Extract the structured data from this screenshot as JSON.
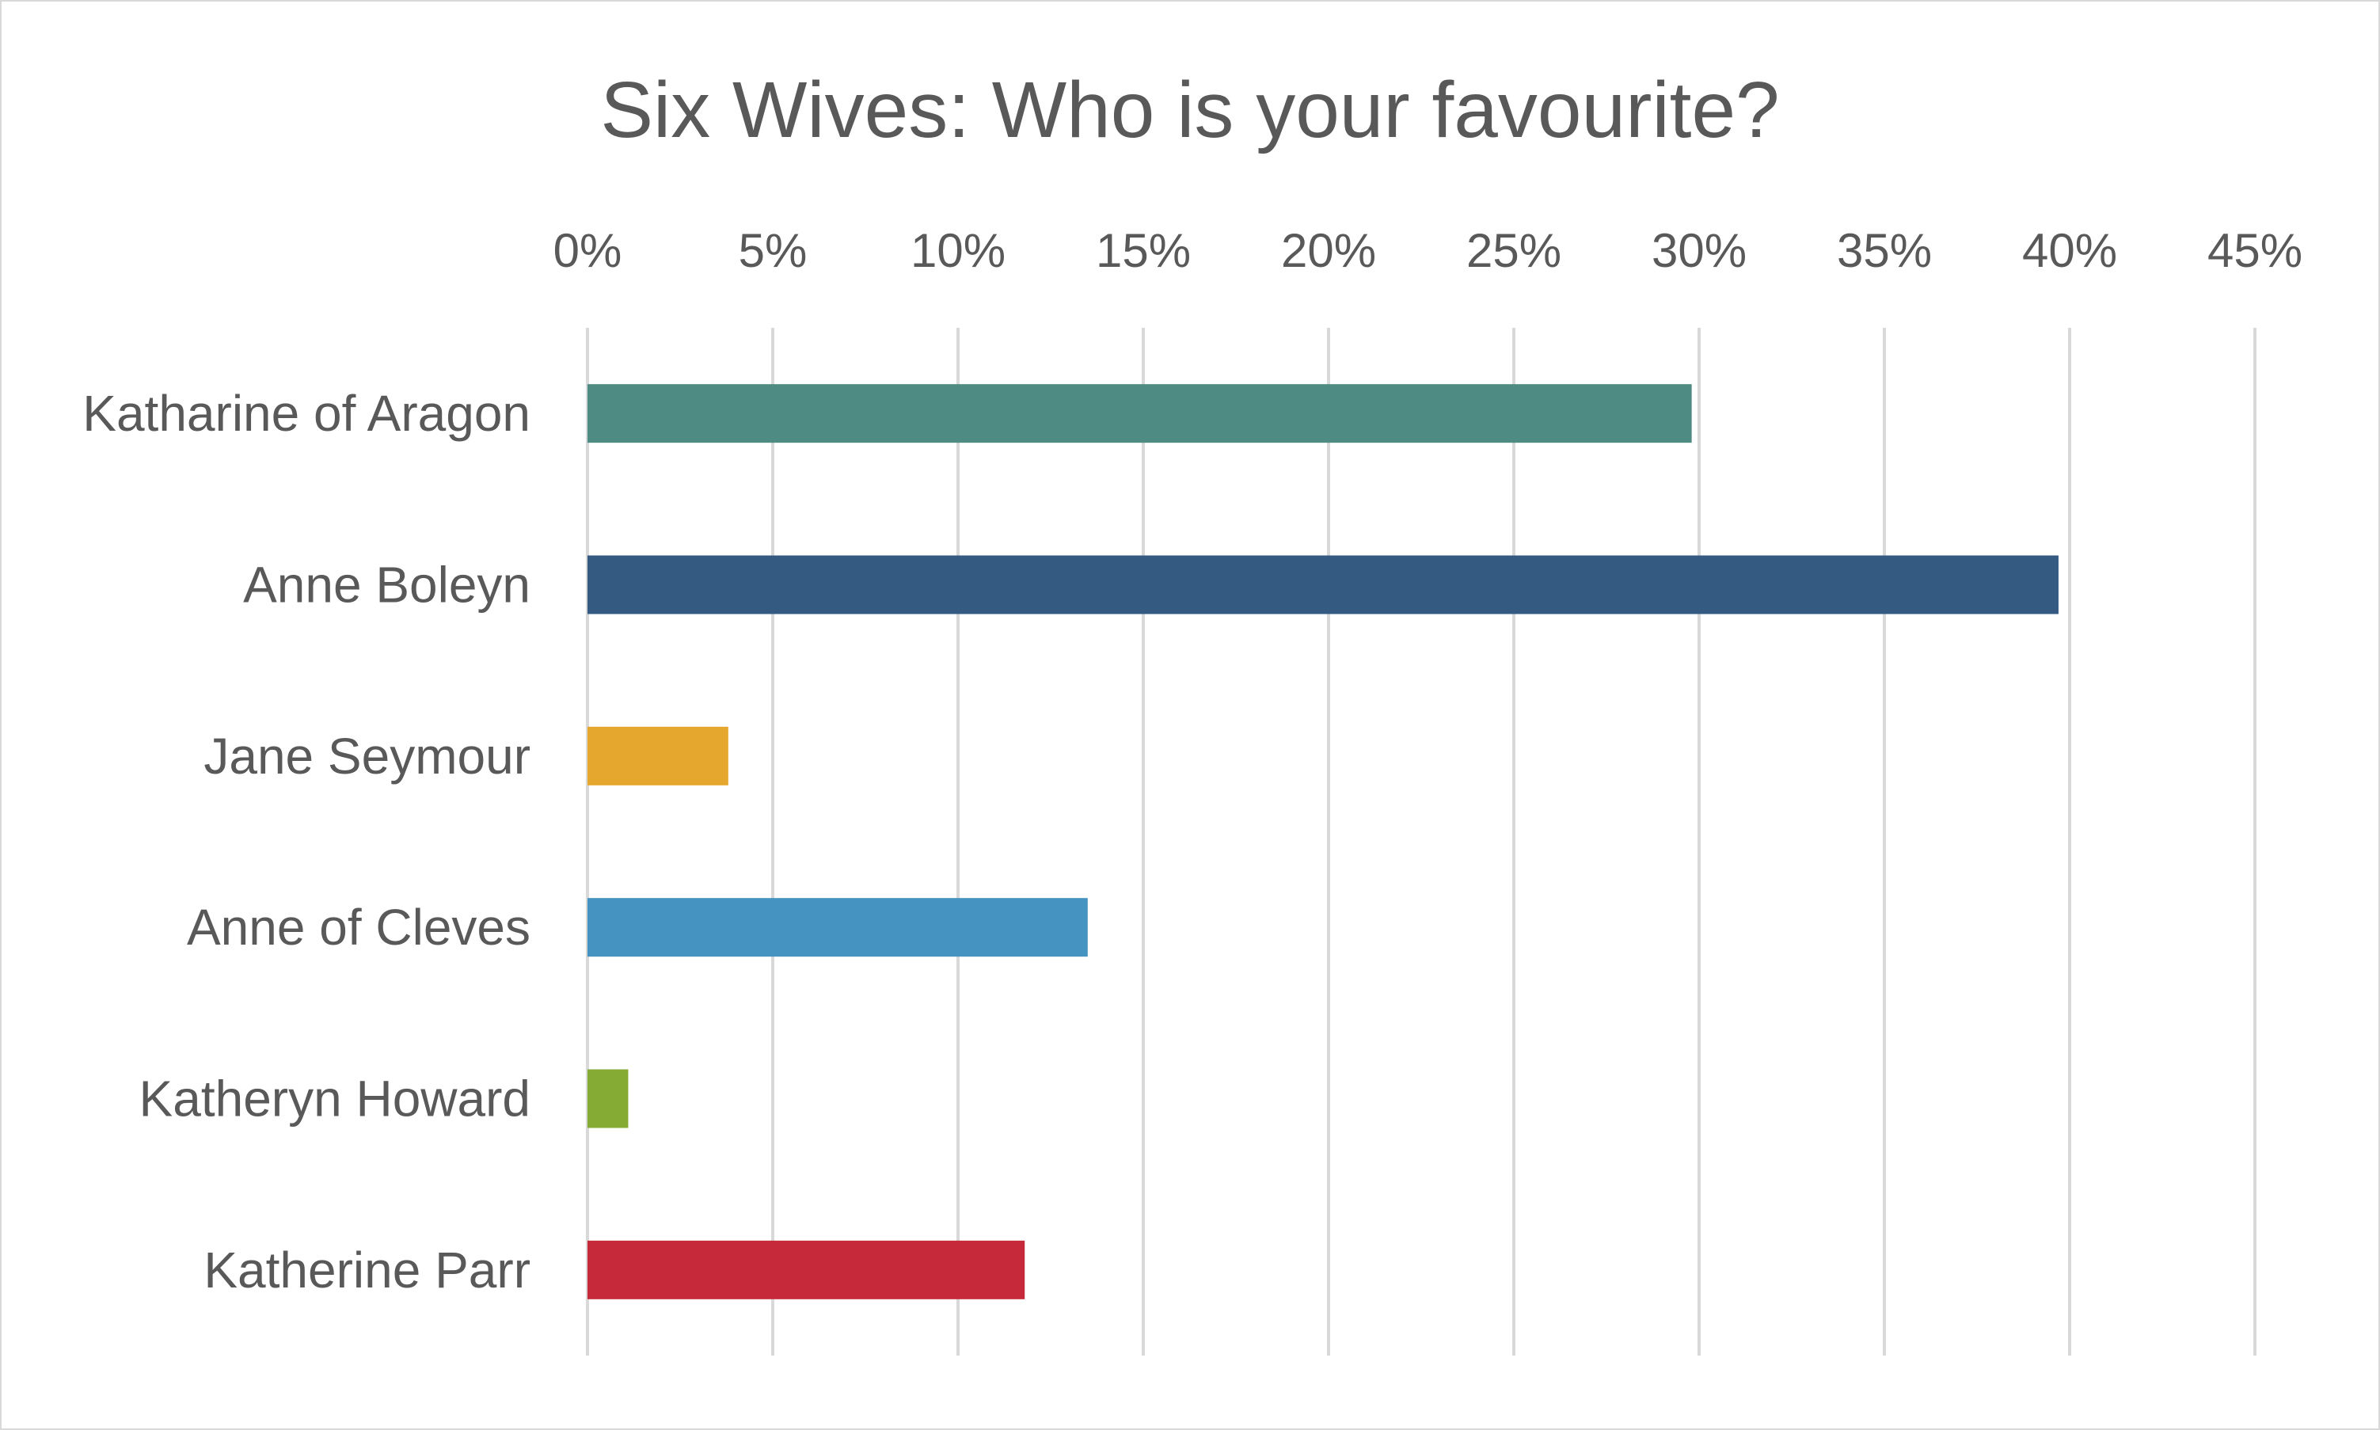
{
  "chart_data": {
    "type": "bar",
    "orientation": "horizontal",
    "title": "Six Wives: Who is your favourite?",
    "xlabel": "",
    "ylabel": "",
    "categories": [
      "Katharine of Aragon",
      "Anne Boleyn",
      "Jane Seymour",
      "Anne of Cleves",
      "Katheryn Howard",
      "Katherine Parr"
    ],
    "values": [
      29.8,
      39.7,
      3.8,
      13.5,
      1.1,
      11.8
    ],
    "value_unit": "%",
    "xlim": [
      0,
      45
    ],
    "x_ticks": [
      0,
      5,
      10,
      15,
      20,
      25,
      30,
      35,
      40,
      45
    ],
    "tick_labels": [
      "0%",
      "5%",
      "10%",
      "15%",
      "20%",
      "25%",
      "30%",
      "35%",
      "40%",
      "45%"
    ],
    "axis_position": "top",
    "grid": true,
    "legend": false,
    "colors": [
      "#4e8b82",
      "#355a82",
      "#e6a72e",
      "#4493c0",
      "#86ab35",
      "#c62a3a"
    ],
    "gridline_color": "#d9d9d9",
    "text_color": "#595959"
  }
}
